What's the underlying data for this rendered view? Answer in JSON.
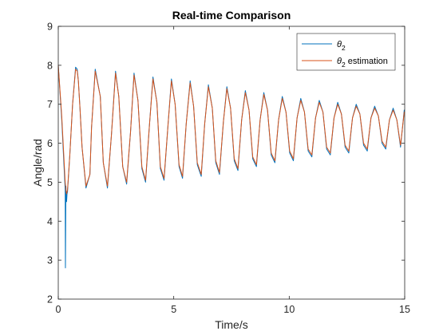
{
  "chart_data": {
    "type": "line",
    "title": "Real-time Comparison",
    "xlabel": "Time/s",
    "ylabel": "Angle/rad",
    "xlim": [
      0,
      15
    ],
    "ylim": [
      2,
      9
    ],
    "xticks": [
      0,
      5,
      10,
      15
    ],
    "yticks": [
      2,
      3,
      4,
      5,
      6,
      7,
      8,
      9
    ],
    "grid": false,
    "legend_position": "top-right",
    "series": [
      {
        "name": "θ2",
        "legend_base": "θ",
        "legend_sub": "2",
        "legend_suffix": "",
        "color": "#0072BD",
        "x": [
          0,
          0.15,
          0.3,
          0.31,
          0.33,
          0.36,
          0.38,
          0.4,
          0.5,
          0.62,
          0.75,
          0.82,
          0.87,
          0.94,
          1.03,
          1.2,
          1.37,
          1.44,
          1.6,
          1.82,
          1.95,
          2.13,
          2.3,
          2.48,
          2.62,
          2.79,
          2.96,
          3.13,
          3.28,
          3.45,
          3.62,
          3.78,
          3.94,
          4.1,
          4.27,
          4.42,
          4.58,
          4.75,
          4.9,
          5.06,
          5.23,
          5.38,
          5.54,
          5.71,
          5.86,
          6.02,
          6.19,
          6.34,
          6.5,
          6.67,
          6.82,
          6.98,
          7.15,
          7.3,
          7.46,
          7.62,
          7.78,
          7.94,
          8.1,
          8.26,
          8.42,
          8.58,
          8.74,
          8.9,
          9.06,
          9.22,
          9.38,
          9.54,
          9.7,
          9.86,
          10.02,
          10.18,
          10.34,
          10.5,
          10.66,
          10.82,
          10.98,
          11.14,
          11.3,
          11.46,
          11.62,
          11.78,
          11.94,
          12.1,
          12.26,
          12.42,
          12.58,
          12.74,
          12.9,
          13.06,
          13.22,
          13.38,
          13.54,
          13.7,
          13.86,
          14.02,
          14.18,
          14.34,
          14.5,
          14.66,
          14.82,
          14.98
        ],
        "y": [
          8.0,
          6.6,
          4.8,
          2.8,
          4.9,
          4.5,
          4.7,
          4.75,
          5.7,
          7.0,
          7.95,
          7.9,
          7.6,
          6.9,
          5.9,
          4.85,
          5.2,
          6.4,
          7.9,
          7.2,
          5.5,
          4.85,
          6.2,
          7.85,
          7.2,
          5.4,
          4.95,
          6.3,
          7.8,
          7.1,
          5.35,
          5.0,
          6.4,
          7.7,
          7.05,
          5.35,
          5.05,
          6.45,
          7.65,
          7.0,
          5.4,
          5.1,
          6.5,
          7.6,
          6.95,
          5.45,
          5.15,
          6.5,
          7.5,
          6.9,
          5.5,
          5.2,
          6.55,
          7.45,
          6.9,
          5.55,
          5.3,
          6.6,
          7.35,
          6.85,
          5.6,
          5.4,
          6.6,
          7.3,
          6.85,
          5.7,
          5.5,
          6.6,
          7.2,
          6.8,
          5.75,
          5.55,
          6.65,
          7.15,
          6.8,
          5.8,
          5.65,
          6.65,
          7.1,
          6.8,
          5.85,
          5.7,
          6.65,
          7.05,
          6.75,
          5.9,
          5.75,
          6.65,
          7.0,
          6.75,
          5.95,
          5.8,
          6.65,
          6.95,
          6.7,
          6.0,
          5.85,
          6.6,
          6.9,
          6.6,
          5.9,
          6.85
        ]
      },
      {
        "name": "θ2 estimation",
        "legend_base": "θ",
        "legend_sub": "2",
        "legend_suffix": " estimation",
        "color": "#D95319",
        "x": [
          0,
          0.15,
          0.3,
          0.33,
          0.36,
          0.38,
          0.4,
          0.5,
          0.62,
          0.75,
          0.82,
          0.87,
          0.94,
          1.03,
          1.2,
          1.37,
          1.44,
          1.6,
          1.82,
          1.95,
          2.13,
          2.3,
          2.48,
          2.62,
          2.79,
          2.96,
          3.13,
          3.28,
          3.45,
          3.62,
          3.78,
          3.94,
          4.1,
          4.27,
          4.42,
          4.58,
          4.75,
          4.9,
          5.06,
          5.23,
          5.38,
          5.54,
          5.71,
          5.86,
          6.02,
          6.19,
          6.34,
          6.5,
          6.67,
          6.82,
          6.98,
          7.15,
          7.3,
          7.46,
          7.62,
          7.78,
          7.94,
          8.1,
          8.26,
          8.42,
          8.58,
          8.74,
          8.9,
          9.06,
          9.22,
          9.38,
          9.54,
          9.7,
          9.86,
          10.02,
          10.18,
          10.34,
          10.5,
          10.66,
          10.82,
          10.98,
          11.14,
          11.3,
          11.46,
          11.62,
          11.78,
          11.94,
          12.1,
          12.26,
          12.42,
          12.58,
          12.74,
          12.9,
          13.06,
          13.22,
          13.38,
          13.54,
          13.7,
          13.86,
          14.02,
          14.18,
          14.34,
          14.5,
          14.66,
          14.82,
          14.98
        ],
        "y": [
          8.0,
          6.7,
          5.0,
          4.8,
          4.7,
          4.75,
          4.8,
          5.7,
          7.0,
          7.9,
          7.85,
          7.6,
          6.9,
          5.9,
          4.9,
          5.2,
          6.4,
          7.85,
          7.2,
          5.5,
          4.9,
          6.2,
          7.8,
          7.2,
          5.4,
          5.0,
          6.3,
          7.75,
          7.1,
          5.4,
          5.05,
          6.4,
          7.65,
          7.05,
          5.4,
          5.1,
          6.45,
          7.6,
          7.0,
          5.45,
          5.15,
          6.5,
          7.55,
          6.95,
          5.5,
          5.2,
          6.5,
          7.45,
          6.9,
          5.55,
          5.25,
          6.55,
          7.4,
          6.9,
          5.6,
          5.35,
          6.6,
          7.3,
          6.85,
          5.65,
          5.45,
          6.6,
          7.25,
          6.85,
          5.75,
          5.55,
          6.6,
          7.15,
          6.8,
          5.8,
          5.6,
          6.65,
          7.1,
          6.8,
          5.85,
          5.7,
          6.65,
          7.05,
          6.8,
          5.9,
          5.75,
          6.65,
          7.0,
          6.75,
          5.95,
          5.8,
          6.65,
          6.95,
          6.75,
          6.0,
          5.85,
          6.65,
          6.9,
          6.7,
          6.05,
          5.9,
          6.6,
          6.85,
          6.6,
          5.95,
          6.8
        ]
      }
    ]
  }
}
